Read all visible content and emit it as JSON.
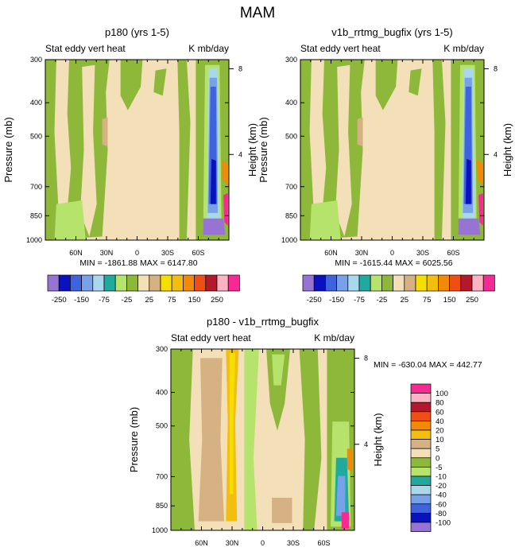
{
  "main_title": "MAM",
  "colors": {
    "green": "#8db83a",
    "beige": "#f3dfb8",
    "tan": "#d6b184",
    "lightgreen": "#b6e36b",
    "lilac": "#9774d4",
    "navy": "#0a12c0",
    "royal": "#3e63dc",
    "cornflower": "#79a1e9",
    "paleblue": "#a9d7ec",
    "teal": "#21a9a0",
    "gold": "#f5df00",
    "yellow": "#f2bf10",
    "orange": "#f28a07",
    "redorange": "#ef4e14",
    "darkred": "#b4182b",
    "pink": "#fcb4c4",
    "magenta": "#f72a94"
  },
  "chart_data": [
    {
      "id": "top_left",
      "type": "filled-contour",
      "title": "p180 (yrs 1-5)",
      "left_label": "Stat eddy vert heat",
      "right_label": "K mb/day",
      "ylabel": "Pressure (mb)",
      "ylabel_right": "Height (km)",
      "y_ticks": [
        "300",
        "400",
        "500",
        "700",
        "850",
        "1000"
      ],
      "y_tick_values": [
        300,
        400,
        500,
        700,
        850,
        1000
      ],
      "ylim": [
        300,
        1000
      ],
      "y_right_ticks": [
        "8",
        "4"
      ],
      "y_right_tick_values": [
        8,
        4
      ],
      "x_ticks": [
        "60N",
        "30N",
        "0",
        "30S",
        "60S"
      ],
      "x_tick_values": [
        60,
        30,
        0,
        -30,
        -60
      ],
      "xlim": [
        90,
        -90
      ],
      "min_label": "MIN = -1861.88",
      "max_label": "MAX = 6147.80"
    },
    {
      "id": "top_right",
      "type": "filled-contour",
      "title": "v1b_rrtmg_bugfix (yrs 1-5)",
      "left_label": "Stat eddy vert heat",
      "right_label": "K mb/day",
      "ylabel": "Pressure (mb)",
      "ylabel_right": "Height (km)",
      "y_ticks": [
        "300",
        "400",
        "500",
        "700",
        "850",
        "1000"
      ],
      "y_tick_values": [
        300,
        400,
        500,
        700,
        850,
        1000
      ],
      "ylim": [
        300,
        1000
      ],
      "y_right_ticks": [
        "8",
        "4"
      ],
      "y_right_tick_values": [
        8,
        4
      ],
      "x_ticks": [
        "60N",
        "30N",
        "0",
        "30S",
        "60S"
      ],
      "x_tick_values": [
        60,
        30,
        0,
        -30,
        -60
      ],
      "xlim": [
        90,
        -90
      ],
      "min_label": "MIN = -1615.44",
      "max_label": "MAX = 6025.56"
    },
    {
      "id": "bottom_diff",
      "type": "filled-contour",
      "title": "p180 - v1b_rrtmg_bugfix",
      "left_label": "Stat eddy vert heat",
      "right_label": "K mb/day",
      "ylabel": "Pressure (mb)",
      "ylabel_right": "Height (km)",
      "y_ticks": [
        "300",
        "400",
        "500",
        "700",
        "850",
        "1000"
      ],
      "y_tick_values": [
        300,
        400,
        500,
        700,
        850,
        1000
      ],
      "ylim": [
        300,
        1000
      ],
      "y_right_ticks": [
        "8",
        "4"
      ],
      "y_right_tick_values": [
        8,
        4
      ],
      "x_ticks": [
        "60N",
        "30N",
        "0",
        "30S",
        "60S"
      ],
      "x_tick_values": [
        60,
        30,
        0,
        -30,
        -60
      ],
      "xlim": [
        90,
        -90
      ],
      "minmax_label": "MIN = -630.04  MAX = 442.77"
    }
  ],
  "colorbar_top": {
    "colors": [
      "#9774d4",
      "#0a12c0",
      "#3e63dc",
      "#79a1e9",
      "#a9d7ec",
      "#21a9a0",
      "#b6e36b",
      "#8db83a",
      "#f3dfb8",
      "#d6b184",
      "#f5df00",
      "#f2bf10",
      "#f28a07",
      "#ef4e14",
      "#b4182b",
      "#fcb4c4",
      "#f72a94"
    ],
    "labels": [
      "-250",
      "-150",
      "-75",
      "-25",
      "25",
      "75",
      "150",
      "250"
    ]
  },
  "colorbar_diff": {
    "colors": [
      "#f72a94",
      "#fcb4c4",
      "#b4182b",
      "#ef4e14",
      "#f28a07",
      "#f2bf10",
      "#d6b184",
      "#f3dfb8",
      "#8db83a",
      "#b6e36b",
      "#21a9a0",
      "#a9d7ec",
      "#79a1e9",
      "#3e63dc",
      "#0a12c0",
      "#9774d4"
    ],
    "labels": [
      "100",
      "80",
      "60",
      "40",
      "20",
      "10",
      "5",
      "0",
      "-5",
      "-10",
      "-20",
      "-40",
      "-60",
      "-80",
      "-100"
    ]
  }
}
